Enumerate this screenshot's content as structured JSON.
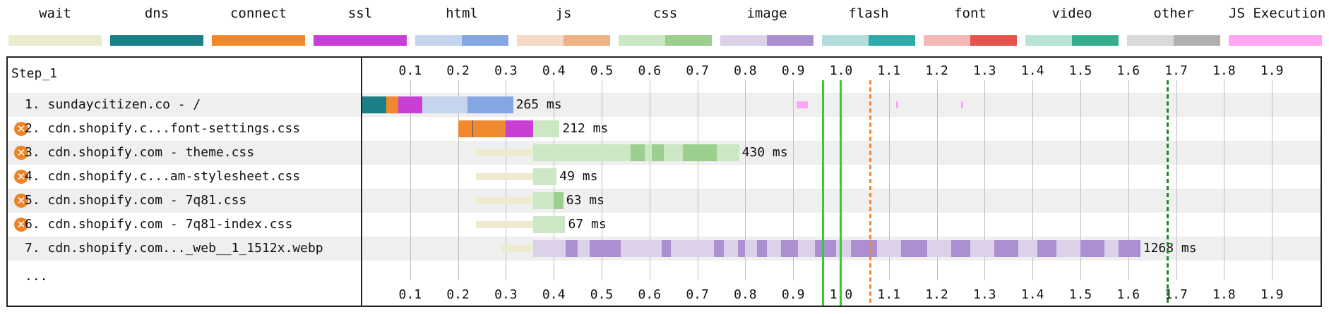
{
  "legend": [
    {
      "label": "wait",
      "colors": [
        "#ecebd0",
        "#ecebd0"
      ]
    },
    {
      "label": "dns",
      "colors": [
        "#1a7f86",
        "#1a7f86"
      ]
    },
    {
      "label": "connect",
      "colors": [
        "#f0892e",
        "#f0892e"
      ]
    },
    {
      "label": "ssl",
      "colors": [
        "#c93fd6",
        "#c93fd6"
      ]
    },
    {
      "label": "html",
      "colors": [
        "#c6d5ee",
        "#84a7e3"
      ]
    },
    {
      "label": "js",
      "colors": [
        "#f6dac6",
        "#edb182"
      ]
    },
    {
      "label": "css",
      "colors": [
        "#cce7c4",
        "#9bcf8d"
      ]
    },
    {
      "label": "image",
      "colors": [
        "#ddd1ea",
        "#ac8fd1"
      ]
    },
    {
      "label": "flash",
      "colors": [
        "#b5dcdc",
        "#2eaaaa"
      ]
    },
    {
      "label": "font",
      "colors": [
        "#f4b8b4",
        "#e5544a"
      ]
    },
    {
      "label": "video",
      "colors": [
        "#b8e4d6",
        "#35ae8d"
      ]
    },
    {
      "label": "other",
      "colors": [
        "#d9d9d9",
        "#b0b0b0"
      ]
    },
    {
      "label": "JS Execution",
      "colors": [
        "#ffa6f3",
        "#ffa6f3"
      ]
    }
  ],
  "step_label": "Step_1",
  "axis": {
    "min": 0,
    "max": 2.0,
    "ticks": [
      "0.1",
      "0.2",
      "0.3",
      "0.4",
      "0.5",
      "0.6",
      "0.7",
      "0.8",
      "0.9",
      "1.0",
      "1.1",
      "1.2",
      "1.3",
      "1.4",
      "1.5",
      "1.6",
      "1.7",
      "1.8",
      "1.9"
    ]
  },
  "requests": [
    {
      "label": "1. sundaycitizen.co - /",
      "warning": false,
      "duration": "265 ms",
      "segments": [
        {
          "start": 0.0,
          "end": 0.05,
          "color": "#1a7f86"
        },
        {
          "start": 0.05,
          "end": 0.075,
          "color": "#f0892e"
        },
        {
          "start": 0.075,
          "end": 0.125,
          "color": "#c93fd6"
        },
        {
          "start": 0.125,
          "end": 0.22,
          "color": "#c6d5ee"
        },
        {
          "start": 0.22,
          "end": 0.315,
          "color": "#84a7e3"
        }
      ]
    },
    {
      "label": "2. cdn.shopify.c...font-settings.css",
      "warning": true,
      "duration": "212 ms",
      "segments": [
        {
          "start": 0.2,
          "end": 0.23,
          "color": "#f0892e"
        },
        {
          "start": 0.23,
          "end": 0.232,
          "color": "#555555"
        },
        {
          "start": 0.232,
          "end": 0.3,
          "color": "#f0892e"
        },
        {
          "start": 0.3,
          "end": 0.357,
          "color": "#c93fd6"
        },
        {
          "start": 0.357,
          "end": 0.412,
          "color": "#cce7c4"
        }
      ]
    },
    {
      "label": "3. cdn.shopify.com - theme.css",
      "warning": true,
      "duration": "430 ms",
      "segments": [
        {
          "start": 0.237,
          "end": 0.357,
          "color": "#ecebd0"
        },
        {
          "start": 0.357,
          "end": 0.56,
          "color": "#cce7c4"
        },
        {
          "start": 0.56,
          "end": 0.59,
          "color": "#9bcf8d"
        },
        {
          "start": 0.59,
          "end": 0.605,
          "color": "#cce7c4"
        },
        {
          "start": 0.605,
          "end": 0.63,
          "color": "#9bcf8d"
        },
        {
          "start": 0.63,
          "end": 0.67,
          "color": "#cce7c4"
        },
        {
          "start": 0.67,
          "end": 0.74,
          "color": "#9bcf8d"
        },
        {
          "start": 0.74,
          "end": 0.787,
          "color": "#cce7c4"
        }
      ]
    },
    {
      "label": "4. cdn.shopify.c...am-stylesheet.css",
      "warning": true,
      "duration": "49 ms",
      "segments": [
        {
          "start": 0.237,
          "end": 0.357,
          "color": "#ecebd0"
        },
        {
          "start": 0.357,
          "end": 0.406,
          "color": "#cce7c4"
        }
      ]
    },
    {
      "label": "5. cdn.shopify.com - 7q81.css",
      "warning": true,
      "duration": "63 ms",
      "segments": [
        {
          "start": 0.237,
          "end": 0.357,
          "color": "#ecebd0"
        },
        {
          "start": 0.357,
          "end": 0.4,
          "color": "#cce7c4"
        },
        {
          "start": 0.4,
          "end": 0.42,
          "color": "#9bcf8d"
        }
      ]
    },
    {
      "label": "6. cdn.shopify.com - 7q81-index.css",
      "warning": true,
      "duration": "67 ms",
      "segments": [
        {
          "start": 0.237,
          "end": 0.357,
          "color": "#ecebd0"
        },
        {
          "start": 0.357,
          "end": 0.424,
          "color": "#cce7c4"
        }
      ]
    },
    {
      "label": "7. cdn.shopify.com..._web__1_1512x.webp",
      "warning": false,
      "duration": "1268 ms",
      "segments": [
        {
          "start": 0.29,
          "end": 0.357,
          "color": "#ecebd0"
        },
        {
          "start": 0.357,
          "end": 0.425,
          "color": "#ddd1ea"
        },
        {
          "start": 0.425,
          "end": 0.45,
          "color": "#ac8fd1"
        },
        {
          "start": 0.45,
          "end": 0.475,
          "color": "#ddd1ea"
        },
        {
          "start": 0.475,
          "end": 0.54,
          "color": "#ac8fd1"
        },
        {
          "start": 0.54,
          "end": 0.625,
          "color": "#ddd1ea"
        },
        {
          "start": 0.625,
          "end": 0.645,
          "color": "#ac8fd1"
        },
        {
          "start": 0.645,
          "end": 0.735,
          "color": "#ddd1ea"
        },
        {
          "start": 0.735,
          "end": 0.755,
          "color": "#ac8fd1"
        },
        {
          "start": 0.755,
          "end": 0.785,
          "color": "#ddd1ea"
        },
        {
          "start": 0.785,
          "end": 0.8,
          "color": "#ac8fd1"
        },
        {
          "start": 0.8,
          "end": 0.825,
          "color": "#ddd1ea"
        },
        {
          "start": 0.825,
          "end": 0.845,
          "color": "#ac8fd1"
        },
        {
          "start": 0.845,
          "end": 0.875,
          "color": "#ddd1ea"
        },
        {
          "start": 0.875,
          "end": 0.91,
          "color": "#ac8fd1"
        },
        {
          "start": 0.91,
          "end": 0.945,
          "color": "#ddd1ea"
        },
        {
          "start": 0.945,
          "end": 0.99,
          "color": "#ac8fd1"
        },
        {
          "start": 0.99,
          "end": 1.02,
          "color": "#ddd1ea"
        },
        {
          "start": 1.02,
          "end": 1.075,
          "color": "#ac8fd1"
        },
        {
          "start": 1.075,
          "end": 1.125,
          "color": "#ddd1ea"
        },
        {
          "start": 1.125,
          "end": 1.18,
          "color": "#ac8fd1"
        },
        {
          "start": 1.18,
          "end": 1.23,
          "color": "#ddd1ea"
        },
        {
          "start": 1.23,
          "end": 1.27,
          "color": "#ac8fd1"
        },
        {
          "start": 1.27,
          "end": 1.32,
          "color": "#ddd1ea"
        },
        {
          "start": 1.32,
          "end": 1.37,
          "color": "#ac8fd1"
        },
        {
          "start": 1.37,
          "end": 1.41,
          "color": "#ddd1ea"
        },
        {
          "start": 1.41,
          "end": 1.45,
          "color": "#ac8fd1"
        },
        {
          "start": 1.45,
          "end": 1.5,
          "color": "#ddd1ea"
        },
        {
          "start": 1.5,
          "end": 1.55,
          "color": "#ac8fd1"
        },
        {
          "start": 1.55,
          "end": 1.58,
          "color": "#ddd1ea"
        },
        {
          "start": 1.58,
          "end": 1.625,
          "color": "#ac8fd1"
        }
      ]
    }
  ],
  "js_execution_marks": [
    {
      "row": 0,
      "start": 0.907,
      "end": 0.93
    },
    {
      "row": 0,
      "start": 1.115,
      "end": 1.12
    },
    {
      "row": 0,
      "start": 1.25,
      "end": 1.255
    }
  ],
  "markers": [
    {
      "value": 0.962,
      "color": "#33cc33",
      "style": "solid"
    },
    {
      "value": 0.998,
      "color": "#33cc33",
      "style": "solid"
    },
    {
      "value": 1.06,
      "color": "#f0892e",
      "style": "dashed"
    },
    {
      "value": 1.682,
      "color": "#1e8a1e",
      "style": "dashed"
    }
  ],
  "more_label": "...",
  "chart_data": {
    "type": "bar",
    "categories": [
      "1. sundaycitizen.co - /",
      "2. cdn.shopify.c...font-settings.css",
      "3. cdn.shopify.com - theme.css",
      "4. cdn.shopify.c...am-stylesheet.css",
      "5. cdn.shopify.com - 7q81.css",
      "6. cdn.shopify.com - 7q81-index.css",
      "7. cdn.shopify.com..._web__1_1512x.webp"
    ],
    "values": [
      265,
      212,
      430,
      49,
      63,
      67,
      1268
    ],
    "title": "Step_1",
    "xlim": [
      0,
      2.0
    ]
  }
}
